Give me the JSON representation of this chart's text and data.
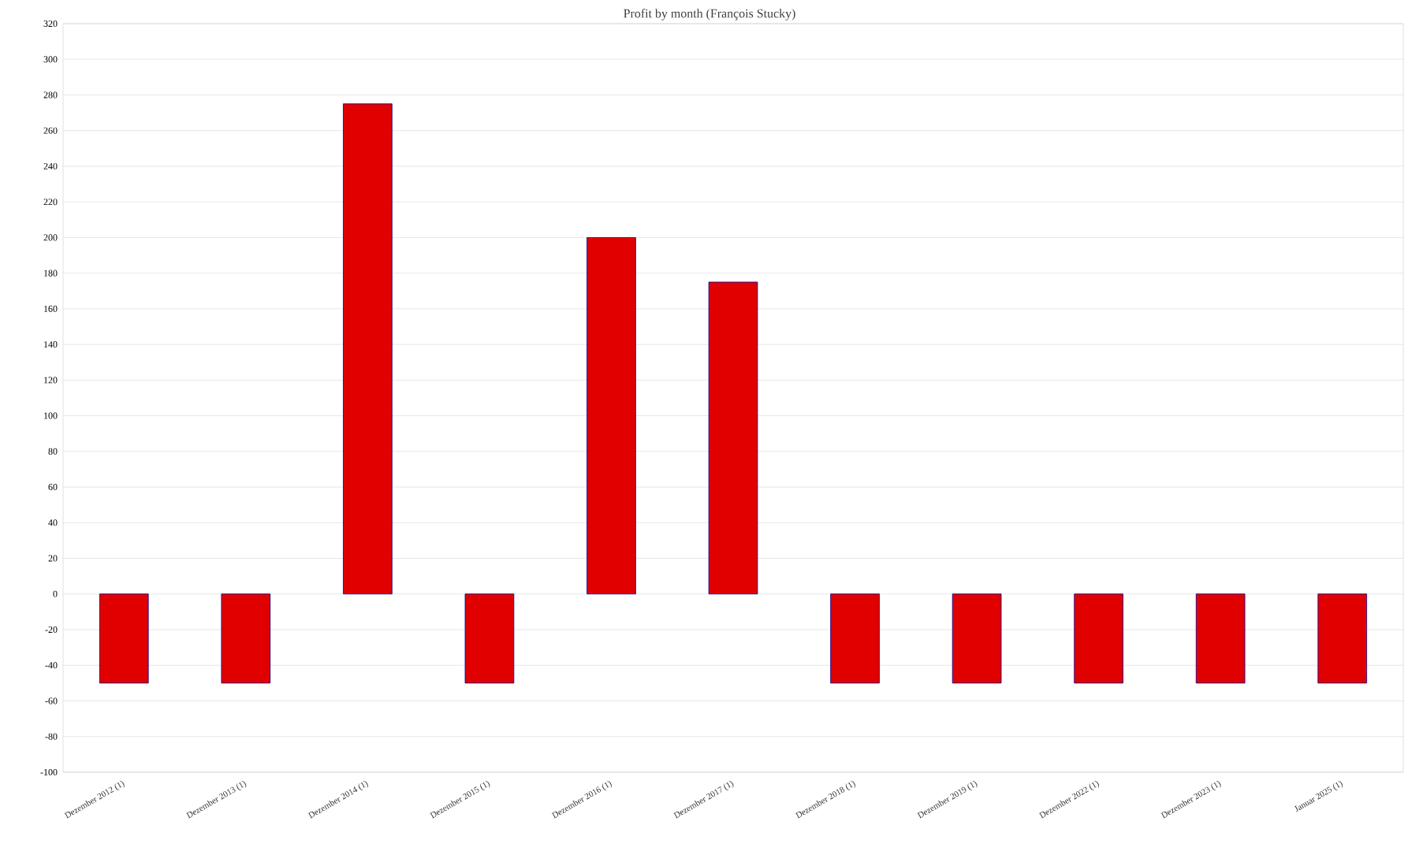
{
  "chart_data": {
    "type": "bar",
    "title": "Profit by month  (François Stucky)",
    "categories": [
      "Dezember 2012 (1)",
      "Dezember 2013 (1)",
      "Dezember 2014 (1)",
      "Dezember 2015 (1)",
      "Dezember 2016 (1)",
      "Dezember 2017 (1)",
      "Dezember 2018 (1)",
      "Dezember 2019 (1)",
      "Dezember 2022 (1)",
      "Dezember 2023 (1)",
      "Januar 2025 (1)"
    ],
    "values": [
      -50,
      -50,
      275,
      -50,
      200,
      175,
      -50,
      -50,
      -50,
      -50,
      -50
    ],
    "color": "#e00000",
    "ylim": [
      -100,
      320
    ],
    "yticks": [
      -100,
      -80,
      -60,
      -40,
      -20,
      0,
      20,
      40,
      60,
      80,
      100,
      120,
      140,
      160,
      180,
      200,
      220,
      240,
      260,
      280,
      300,
      320
    ],
    "grid": "y"
  }
}
